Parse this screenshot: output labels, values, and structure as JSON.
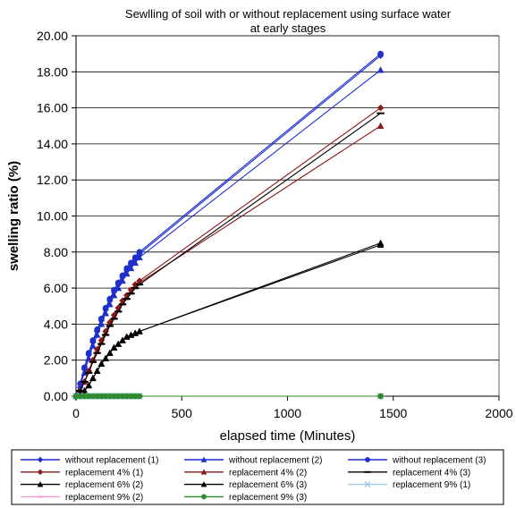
{
  "chart_data": {
    "type": "line",
    "title": "Sewlling of soil with or without replacement using surface water\nat early stages",
    "xlabel": "elapsed time (Minutes)",
    "ylabel": "swelling ratio (%)",
    "xlim": [
      0,
      2000
    ],
    "ylim": [
      0,
      20
    ],
    "xticks": [
      0,
      500,
      1000,
      1500,
      2000
    ],
    "yticks": [
      0,
      2,
      4,
      6,
      8,
      10,
      12,
      14,
      16,
      18,
      20
    ],
    "xticklabels": [
      "0",
      "500",
      "1000",
      "1500",
      "2000"
    ],
    "yticklabels": [
      "0.00",
      "2.00",
      "4.00",
      "6.00",
      "8.00",
      "10.00",
      "12.00",
      "14.00",
      "16.00",
      "18.00",
      "20.00"
    ],
    "grid": "horizontal",
    "legend": "bottom",
    "series": [
      {
        "name": "without replacement (1)",
        "color": "#1f2fcc",
        "marker": "diamond",
        "x": [
          0,
          20,
          40,
          60,
          80,
          100,
          120,
          140,
          160,
          180,
          200,
          220,
          240,
          260,
          280,
          300,
          1440
        ],
        "y": [
          0.0,
          0.7,
          1.5,
          2.3,
          3.0,
          3.6,
          4.2,
          4.8,
          5.3,
          5.8,
          6.2,
          6.6,
          7.0,
          7.3,
          7.6,
          7.9,
          18.9
        ]
      },
      {
        "name": "without replacement (2)",
        "color": "#1f2fcc",
        "marker": "triangle",
        "x": [
          0,
          20,
          40,
          60,
          80,
          100,
          120,
          140,
          160,
          180,
          200,
          220,
          240,
          260,
          280,
          300,
          1440
        ],
        "y": [
          0.0,
          0.6,
          1.3,
          2.1,
          2.8,
          3.4,
          4.0,
          4.6,
          5.1,
          5.6,
          6.0,
          6.4,
          6.8,
          7.1,
          7.4,
          7.7,
          18.1
        ]
      },
      {
        "name": "without replacement (3)",
        "color": "#1f2fcc",
        "marker": "circle",
        "x": [
          0,
          20,
          40,
          60,
          80,
          100,
          120,
          140,
          160,
          180,
          200,
          220,
          240,
          260,
          280,
          300,
          1440
        ],
        "y": [
          0.0,
          0.7,
          1.6,
          2.4,
          3.1,
          3.7,
          4.3,
          4.9,
          5.4,
          5.9,
          6.3,
          6.7,
          7.1,
          7.4,
          7.7,
          8.0,
          19.0
        ]
      },
      {
        "name": "replacement 4% (1)",
        "color": "#8b1a1a",
        "marker": "diamond",
        "x": [
          0,
          20,
          40,
          60,
          80,
          100,
          120,
          140,
          160,
          180,
          200,
          220,
          240,
          260,
          280,
          300,
          1440
        ],
        "y": [
          0.0,
          0.3,
          0.8,
          1.4,
          2.0,
          2.6,
          3.1,
          3.6,
          4.1,
          4.5,
          4.9,
          5.3,
          5.6,
          5.9,
          6.2,
          6.4,
          16.0
        ]
      },
      {
        "name": "replacement 4% (2)",
        "color": "#8b1a1a",
        "marker": "triangle",
        "x": [
          0,
          20,
          40,
          60,
          80,
          100,
          120,
          140,
          160,
          180,
          200,
          220,
          240,
          260,
          280,
          300,
          1440
        ],
        "y": [
          0.0,
          0.3,
          0.8,
          1.4,
          2.0,
          2.5,
          3.0,
          3.5,
          4.0,
          4.4,
          4.8,
          5.2,
          5.5,
          5.8,
          6.1,
          6.3,
          15.0
        ]
      },
      {
        "name": "replacement 4% (3)",
        "color": "#000000",
        "marker": "dash",
        "x": [
          0,
          20,
          40,
          60,
          80,
          100,
          120,
          140,
          160,
          180,
          200,
          220,
          240,
          260,
          280,
          300,
          1440
        ],
        "y": [
          0.0,
          0.3,
          0.8,
          1.3,
          1.9,
          2.4,
          2.9,
          3.4,
          3.9,
          4.3,
          4.7,
          5.1,
          5.4,
          5.7,
          6.0,
          6.2,
          15.7
        ]
      },
      {
        "name": "replacement 6% (2)",
        "color": "#000000",
        "marker": "triangle",
        "x": [
          0,
          20,
          40,
          60,
          80,
          100,
          120,
          140,
          160,
          180,
          200,
          220,
          240,
          260,
          280,
          300,
          1440
        ],
        "y": [
          0.0,
          0.1,
          0.3,
          0.6,
          1.0,
          1.4,
          1.8,
          2.1,
          2.4,
          2.7,
          2.9,
          3.1,
          3.3,
          3.4,
          3.5,
          3.6,
          8.5
        ]
      },
      {
        "name": "replacement 6% (3)",
        "color": "#000000",
        "marker": "triangle",
        "x": [
          0,
          20,
          40,
          60,
          80,
          100,
          120,
          140,
          160,
          180,
          200,
          220,
          240,
          260,
          280,
          300,
          1440
        ],
        "y": [
          0.0,
          0.1,
          0.3,
          0.6,
          1.0,
          1.4,
          1.8,
          2.1,
          2.4,
          2.7,
          2.9,
          3.1,
          3.3,
          3.4,
          3.5,
          3.6,
          8.4
        ]
      },
      {
        "name": "replacement 9% (1)",
        "color": "#9ec7ee",
        "marker": "x",
        "x": [
          0,
          20,
          40,
          60,
          80,
          100,
          120,
          140,
          160,
          180,
          200,
          220,
          240,
          260,
          280,
          300,
          1440
        ],
        "y": [
          0.0,
          0.0,
          0.0,
          0.0,
          0.0,
          0.0,
          0.0,
          0.0,
          0.0,
          0.0,
          0.0,
          0.0,
          0.0,
          0.0,
          0.0,
          0.0,
          0.0
        ]
      },
      {
        "name": "replacement 9% (2)",
        "color": "#f29ad0",
        "marker": "dash",
        "x": [
          0,
          20,
          40,
          60,
          80,
          100,
          120,
          140,
          160,
          180,
          200,
          220,
          240,
          260,
          280,
          300,
          1440
        ],
        "y": [
          0.0,
          0.0,
          0.0,
          0.0,
          0.0,
          0.0,
          0.0,
          0.0,
          0.0,
          0.0,
          0.0,
          0.0,
          0.0,
          0.0,
          0.0,
          0.0,
          0.0
        ]
      },
      {
        "name": "replacement 9% (3)",
        "color": "#2e8b2e",
        "marker": "circle",
        "x": [
          0,
          20,
          40,
          60,
          80,
          100,
          120,
          140,
          160,
          180,
          200,
          220,
          240,
          260,
          280,
          300,
          1440
        ],
        "y": [
          0.0,
          0.0,
          0.0,
          0.0,
          0.0,
          0.0,
          0.0,
          0.0,
          0.0,
          0.0,
          0.0,
          0.0,
          0.0,
          0.0,
          0.0,
          0.0,
          0.0
        ]
      }
    ]
  }
}
